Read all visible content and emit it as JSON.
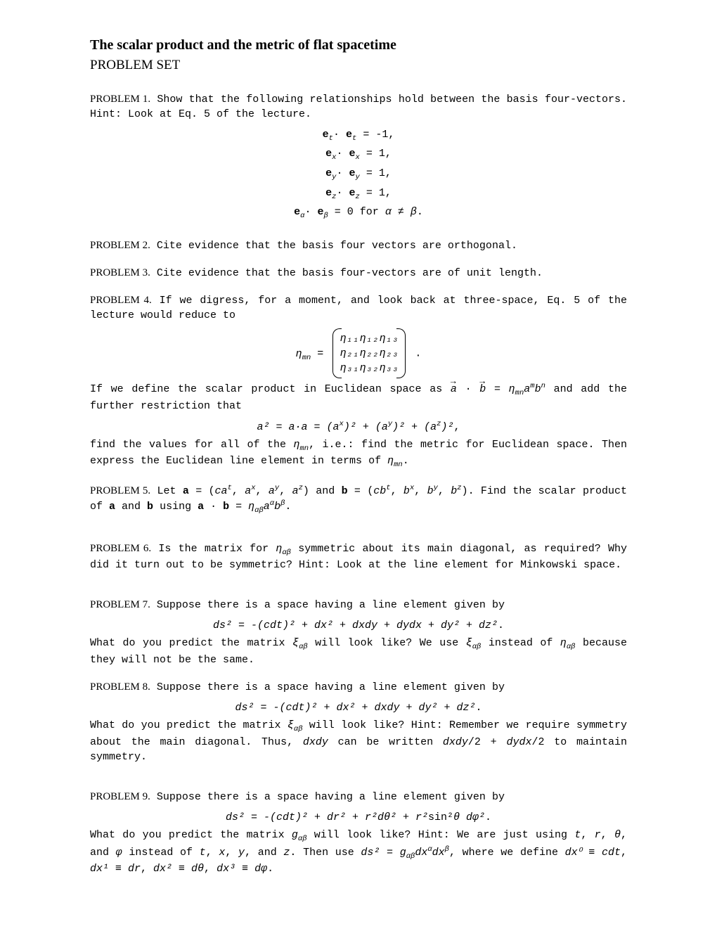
{
  "header": {
    "title": "The scalar product and the metric of flat spacetime",
    "subtitle": "PROBLEM SET"
  },
  "problem1": {
    "label": "PROBLEM 1.",
    "text": " Show that the following relationships hold between the basis four-vectors.  Hint:  Look at Eq. 5 of the lecture.",
    "eq1": "𝐞ₜ· 𝐞ₜ = -1,",
    "eq2": "𝐞ₓ· 𝐞ₓ = 1,",
    "eq3": "𝐞ᵧ· 𝐞ᵧ = 1,",
    "eq4": "𝐞𝓏· 𝐞𝓏 = 1,",
    "eq5_pre": "𝐞",
    "eq5_mid": "· 𝐞",
    "eq5_post": " = 0 for α ≠ β."
  },
  "problem2": {
    "label": "PROBLEM 2.",
    "text": " Cite evidence that the basis four vectors are orthogonal."
  },
  "problem3": {
    "label": "PROBLEM 3.",
    "text": " Cite evidence that the basis four-vectors are of unit length."
  },
  "problem4": {
    "label": "PROBLEM 4.",
    "textA": " If we digress, for a moment, and look back at three-space, Eq. 5 of the lecture would reduce to",
    "m11": "η₁₁",
    "m12": "η₁₂",
    "m13": "η₁₃",
    "m21": "η₂₁",
    "m22": "η₂₂",
    "m23": "η₂₃",
    "m31": "η₃₁",
    "m32": "η₃₂",
    "m33": "η₃₃",
    "etamn": "ηₘₙ = ",
    "textB_pre": "If we define the scalar product in Euclidean space as ",
    "textB_mid": " = ηₘₙaᵐbⁿ and add the further restriction that",
    "eq": "a² = a·a = (aˣ)² + (aʸ)² + (aᶻ)²,",
    "textC": "find the values for all of the ηₘₙ, i.e.: find the metric for Euclidean space.  Then express the Euclidean line element in terms of ηₘₙ."
  },
  "problem5": {
    "label": "PROBLEM 5.",
    "text": " Let 𝐚 = (caᵗ, aˣ, aʸ, aᶻ) and 𝐛 = (cbᵗ, bˣ, bʸ, bᶻ).  Find the scalar product of 𝐚 and 𝐛 using 𝐚 · 𝐛 = ηαβaᵅbᵝ."
  },
  "problem6": {
    "label": "PROBLEM 6.",
    "text": " Is the matrix for ηαβ symmetric about its main diagonal, as required?  Why did it turn out to be symmetric?  Hint:  Look at the line element for Minkowski space."
  },
  "problem7": {
    "label": "PROBLEM 7.",
    "textA": " Suppose there is a space having a line element given by",
    "eq": "ds² = -(cdt)² + dx² + dxdy  + dydx + dy² + dz².",
    "textB": "What do you predict the matrix ξαβ will look like?  We use ξαβ instead of ηαβ because they will not be the same."
  },
  "problem8": {
    "label": "PROBLEM 8.",
    "textA": " Suppose there is a space having a line element given by",
    "eq": "ds² = -(cdt)² + dx² + dxdy + dy² + dz².",
    "textB": "What do you predict the matrix ξαβ will look like?  Hint:  Remember we require symmetry about the main diagonal.  Thus, dxdy can be written dxdy/2 + dydx/2 to maintain symmetry."
  },
  "problem9": {
    "label": "PROBLEM 9.",
    "textA": " Suppose there is a space having a line element given by",
    "eq": "ds² = -(cdt)² + dr² + r²dθ² + r²sin²θ dφ².",
    "textB": "What do you predict the matrix gαβ will look like?  Hint:  We are just using t, r, θ, and φ instead of t, x, y, and z.  Then use ds² = gαβdxᵅdxᵝ, where we define dx⁰ ≡ cdt, dx¹ ≡ dr, dx² ≡ dθ, dx³ ≡ dφ."
  }
}
